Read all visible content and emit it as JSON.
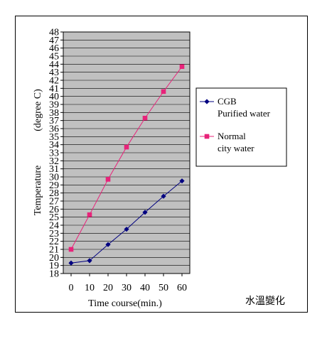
{
  "chart_data": {
    "type": "line",
    "x": [
      0,
      10,
      20,
      30,
      40,
      50,
      60
    ],
    "xlabel": "Time course(min.)",
    "ylabel_main": "Temperature",
    "ylabel_unit": "(degree C)",
    "ylim": [
      18,
      48
    ],
    "ytick_step": 1,
    "grid": "horizontal",
    "legend_position": "right",
    "annotation": "水溫變化",
    "series": [
      {
        "name_lines": [
          "CGB",
          "Purified water"
        ],
        "color": "#000080",
        "marker": "diamond",
        "values": [
          19.3,
          19.6,
          21.6,
          23.5,
          25.6,
          27.6,
          29.5
        ]
      },
      {
        "name_lines": [
          "Normal",
          "city water"
        ],
        "color": "#e8237a",
        "marker": "square",
        "values": [
          21.0,
          25.3,
          29.7,
          33.7,
          37.3,
          40.6,
          43.7
        ]
      }
    ]
  },
  "colors": {
    "plot_bg": "#c0c0c0",
    "grid": "#000000"
  }
}
